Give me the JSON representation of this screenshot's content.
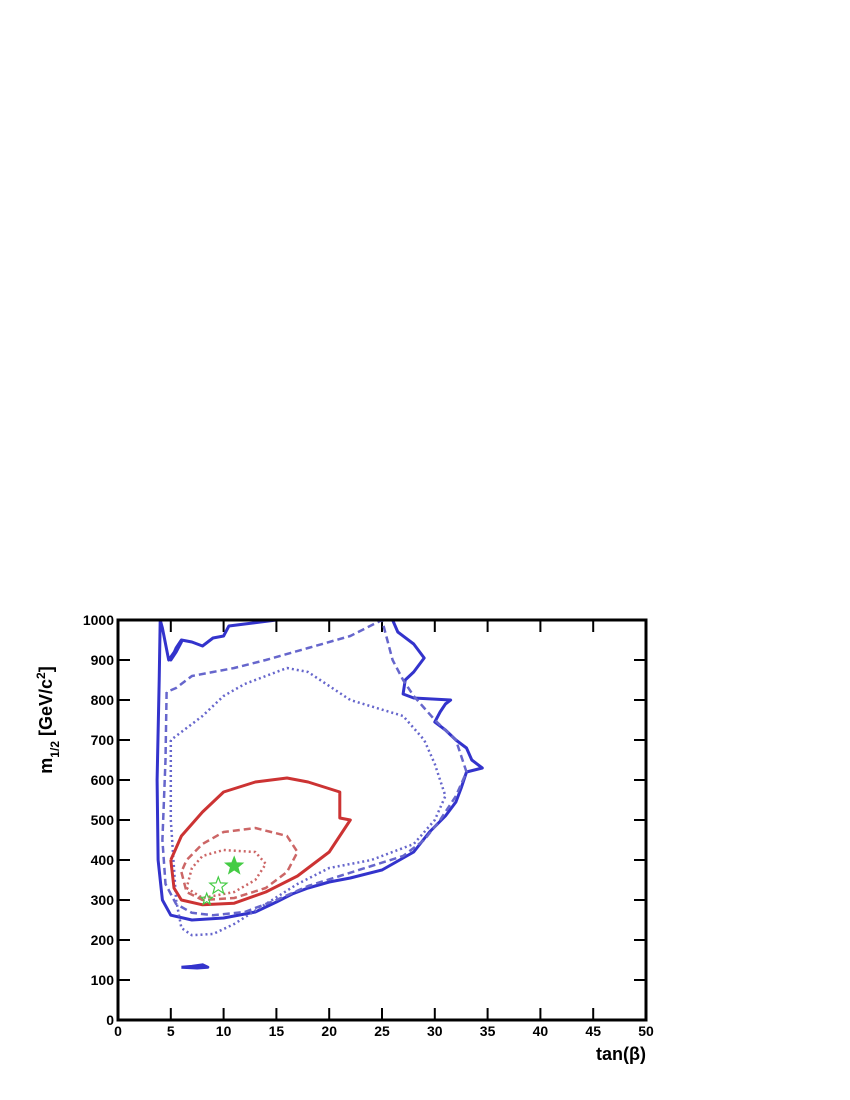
{
  "chart_data": {
    "type": "contour",
    "x_label": "tan(β)",
    "y_label_parts": [
      "m",
      "1/2",
      " [GeV/c",
      "2",
      "]"
    ],
    "xlim": [
      0,
      50
    ],
    "ylim": [
      0,
      1000
    ],
    "xticks": [
      0,
      5,
      10,
      15,
      20,
      25,
      30,
      35,
      40,
      45,
      50
    ],
    "yticks": [
      0,
      100,
      200,
      300,
      400,
      500,
      600,
      700,
      800,
      900,
      1000
    ],
    "series": [
      {
        "color": "#3333cc",
        "dash": "solid",
        "x": [
          4,
          3.9,
          3.7,
          3.8,
          4.2,
          5,
          7,
          10,
          13,
          15,
          16.5,
          18,
          20,
          22,
          25,
          28,
          29.5,
          31,
          32,
          32.5,
          33,
          34.5,
          33.5,
          33,
          32,
          31,
          30,
          30.5,
          31,
          31.5,
          28,
          27,
          27.2,
          28,
          29,
          28,
          26.5,
          26,
          22,
          18,
          15,
          13.5,
          12,
          10.5,
          10,
          9,
          8,
          7,
          6,
          5.5,
          5,
          5.5,
          6,
          4.8,
          4.2,
          4,
          4
        ],
        "y": [
          1000,
          850,
          600,
          400,
          300,
          262,
          250,
          255,
          270,
          295,
          315,
          330,
          345,
          355,
          375,
          420,
          470,
          510,
          545,
          580,
          620,
          630,
          650,
          680,
          700,
          725,
          745,
          770,
          790,
          800,
          805,
          815,
          850,
          870,
          905,
          940,
          970,
          1000,
          1000,
          1000,
          1000,
          995,
          990,
          985,
          960,
          955,
          935,
          945,
          950,
          930,
          900,
          920,
          945,
          900,
          980,
          1000,
          1000
        ]
      },
      {
        "color": "#6666cc",
        "dash": "dashed",
        "x": [
          4.6,
          4.5,
          4.2,
          4.5,
          5.5,
          7,
          9,
          12,
          15,
          18,
          21,
          24,
          27,
          29,
          30.5,
          32,
          33,
          32.5,
          32,
          30,
          29,
          28,
          27,
          26,
          25,
          22,
          18,
          14,
          11,
          9,
          7,
          5.5,
          4.6
        ],
        "y": [
          820,
          650,
          450,
          340,
          290,
          268,
          262,
          270,
          300,
          335,
          360,
          385,
          410,
          450,
          500,
          560,
          620,
          660,
          700,
          750,
          780,
          810,
          850,
          900,
          1000,
          960,
          930,
          900,
          880,
          870,
          860,
          830,
          820
        ]
      },
      {
        "color": "#6666cc",
        "dash": "dotted",
        "x": [
          5,
          5,
          5.5,
          6,
          7,
          9,
          11,
          14,
          17,
          20,
          24,
          28,
          30,
          31,
          30,
          29,
          27,
          22,
          18,
          16,
          12,
          10,
          8,
          6,
          5
        ],
        "y": [
          700,
          500,
          300,
          230,
          212,
          215,
          240,
          290,
          340,
          380,
          400,
          440,
          500,
          560,
          640,
          700,
          760,
          800,
          870,
          880,
          840,
          810,
          760,
          720,
          700
        ]
      },
      {
        "color": "#cc3333",
        "dash": "solid",
        "x": [
          5,
          5.3,
          6,
          8,
          11,
          14,
          17,
          20,
          22,
          21,
          21,
          18,
          16,
          13,
          10,
          8,
          6,
          5
        ],
        "y": [
          400,
          330,
          300,
          288,
          292,
          320,
          360,
          420,
          500,
          505,
          570,
          595,
          605,
          595,
          570,
          520,
          460,
          400
        ]
      },
      {
        "color": "#cc6666",
        "dash": "dashed",
        "x": [
          6,
          6.5,
          8,
          11,
          14,
          16,
          17,
          16,
          13,
          10,
          8,
          6.5,
          6
        ],
        "y": [
          370,
          320,
          300,
          305,
          330,
          370,
          420,
          460,
          480,
          470,
          440,
          400,
          370
        ]
      },
      {
        "color": "#cc6666",
        "dash": "dotted",
        "x": [
          6.5,
          8,
          11,
          13,
          14,
          13,
          10,
          8,
          7,
          6.5
        ],
        "y": [
          330,
          305,
          320,
          350,
          390,
          420,
          425,
          410,
          380,
          330
        ]
      },
      {
        "color": "#3333cc",
        "dash": "solid",
        "x": [
          6,
          7,
          8,
          8.5,
          7.5,
          6
        ],
        "y": [
          132,
          134,
          138,
          132,
          130,
          132
        ]
      },
      {
        "color": "#44cc44",
        "marker": "star-filled",
        "x": [
          11
        ],
        "y": [
          385
        ]
      },
      {
        "color": "#44cc44",
        "marker": "star-open",
        "x": [
          9.5
        ],
        "y": [
          335
        ]
      },
      {
        "color": "#44cc44",
        "marker": "star-small",
        "x": [
          8.4
        ],
        "y": [
          302
        ]
      }
    ]
  }
}
